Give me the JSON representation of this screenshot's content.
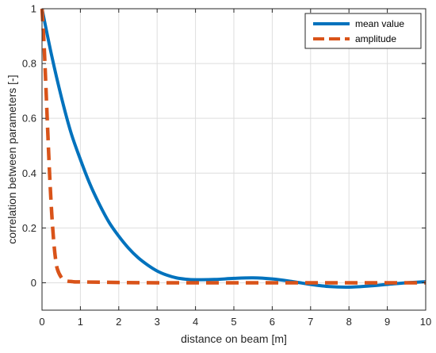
{
  "chart_data": {
    "type": "line",
    "xlabel": "distance on beam [m]",
    "ylabel": "correlation between parameters [-]",
    "xlim": [
      0,
      10
    ],
    "ylim": [
      -0.1,
      1
    ],
    "xticks": [
      "0",
      "1",
      "2",
      "3",
      "4",
      "5",
      "6",
      "7",
      "8",
      "9",
      "10"
    ],
    "yticks": [
      "0",
      "0.2",
      "0.4",
      "0.6",
      "0.8",
      "1"
    ],
    "grid": true,
    "legend_position": "top-right",
    "series": [
      {
        "name": "mean value",
        "color": "#0072BD",
        "style": "solid",
        "x": [
          0,
          0.25,
          0.5,
          0.75,
          1,
          1.25,
          1.5,
          1.75,
          2,
          2.25,
          2.5,
          2.75,
          3,
          3.25,
          3.5,
          3.75,
          4,
          4.5,
          5,
          5.5,
          6,
          6.5,
          7,
          7.5,
          8,
          8.5,
          9,
          9.5,
          10
        ],
        "y": [
          1.0,
          0.83,
          0.68,
          0.55,
          0.45,
          0.36,
          0.285,
          0.22,
          0.17,
          0.127,
          0.092,
          0.065,
          0.043,
          0.028,
          0.018,
          0.013,
          0.011,
          0.012,
          0.016,
          0.018,
          0.014,
          0.005,
          -0.006,
          -0.014,
          -0.016,
          -0.012,
          -0.006,
          0.0,
          0.004
        ]
      },
      {
        "name": "amplitude",
        "color": "#D95319",
        "style": "dashed",
        "x": [
          0,
          0.05,
          0.1,
          0.15,
          0.2,
          0.25,
          0.3,
          0.35,
          0.4,
          0.5,
          0.6,
          0.8,
          1.0,
          2,
          3,
          4,
          5,
          6,
          7,
          8,
          9,
          10
        ],
        "y": [
          1.0,
          0.88,
          0.72,
          0.55,
          0.39,
          0.26,
          0.16,
          0.09,
          0.05,
          0.02,
          0.008,
          0.004,
          0.003,
          0.001,
          0.0,
          0.0,
          0.0,
          0.0,
          0.0,
          0.0,
          0.0,
          0.0
        ]
      }
    ]
  }
}
